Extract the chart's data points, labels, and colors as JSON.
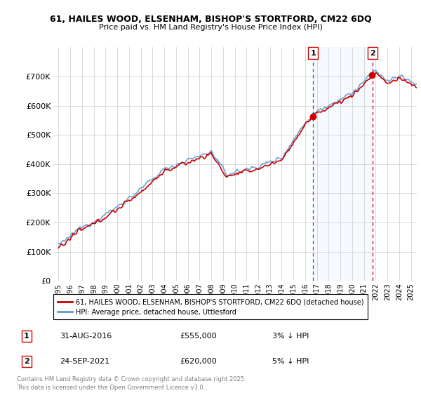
{
  "title_line1": "61, HAILES WOOD, ELSENHAM, BISHOP'S STORTFORD, CM22 6DQ",
  "title_line2": "Price paid vs. HM Land Registry's House Price Index (HPI)",
  "ylim": [
    0,
    800000
  ],
  "yticks": [
    0,
    100000,
    200000,
    300000,
    400000,
    500000,
    600000,
    700000
  ],
  "ytick_labels": [
    "£0",
    "£100K",
    "£200K",
    "£300K",
    "£400K",
    "£500K",
    "£600K",
    "£700K"
  ],
  "legend_entry1": "61, HAILES WOOD, ELSENHAM, BISHOP'S STORTFORD, CM22 6DQ (detached house)",
  "legend_entry2": "HPI: Average price, detached house, Uttlesford",
  "marker1_label": "1",
  "marker1_date": "31-AUG-2016",
  "marker1_price": "£555,000",
  "marker1_hpi": "3% ↓ HPI",
  "marker1_x": 2016.67,
  "marker1_y": 555000,
  "marker2_label": "2",
  "marker2_date": "24-SEP-2021",
  "marker2_price": "£620,000",
  "marker2_hpi": "5% ↓ HPI",
  "marker2_x": 2021.73,
  "marker2_y": 620000,
  "hpi_color": "#5b9bd5",
  "price_color": "#cc0000",
  "vline1_color": "#555555",
  "vline2_color": "#cc0000",
  "shade_color": "#ddeeff",
  "footer_text": "Contains HM Land Registry data © Crown copyright and database right 2025.\nThis data is licensed under the Open Government Licence v3.0.",
  "xlim_start": 1994.5,
  "xlim_end": 2025.5
}
